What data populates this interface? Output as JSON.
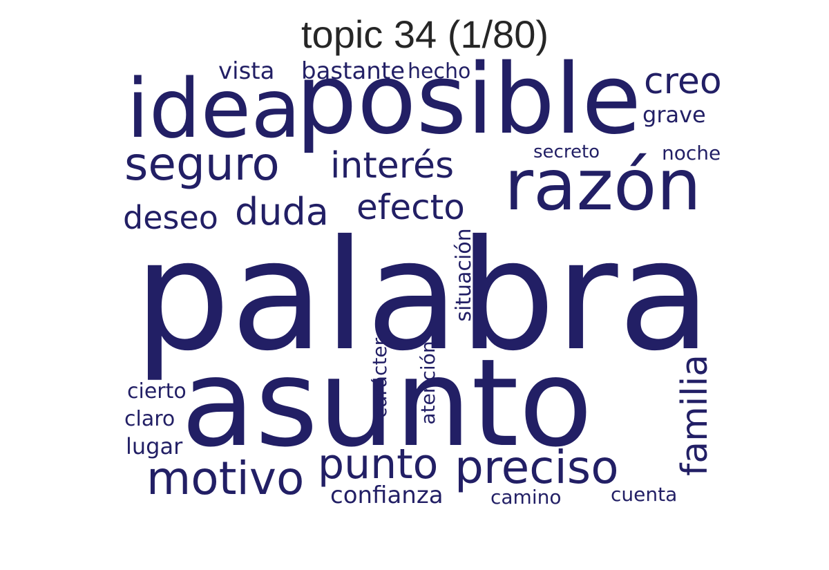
{
  "title": "topic 34 (1/80)",
  "color": "#221f65",
  "words": {
    "palabra": "palabra",
    "asunto": "asunto",
    "posible": "posible",
    "idea": "idea",
    "razon": "razón",
    "seguro": "seguro",
    "interes": "interés",
    "efecto": "efecto",
    "duda": "duda",
    "deseo": "deseo",
    "creo": "creo",
    "grave": "grave",
    "noche": "noche",
    "secreto": "secreto",
    "vista": "vista",
    "bastante": "bastante",
    "hecho": "hecho",
    "situacion": "situación",
    "caracter": "carácter",
    "atencion": "atención",
    "familia": "familia",
    "motivo": "motivo",
    "punto": "punto",
    "preciso": "preciso",
    "confianza": "confianza",
    "camino": "camino",
    "cuenta": "cuenta",
    "cierto": "cierto",
    "claro": "claro",
    "lugar": "lugar"
  }
}
